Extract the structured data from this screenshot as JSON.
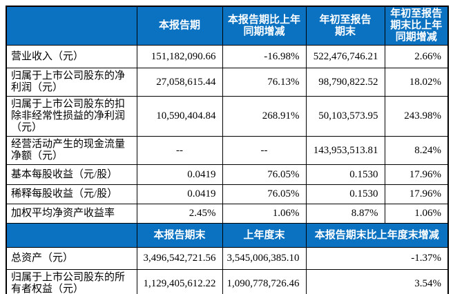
{
  "document": {
    "type": "financial-summary-table",
    "colors": {
      "header_bg": "#0b72c2",
      "header_text": "#ffffff",
      "border": "#000000",
      "body_text": "#000000",
      "page_bg": "#ffffff"
    },
    "sections": [
      {
        "name": "reporting-period",
        "header": [
          {
            "text": "",
            "span": 1
          },
          {
            "text": "本报告期",
            "span": 1
          },
          {
            "text": "本报告期比上年\n同期增减",
            "span": 1
          },
          {
            "text": "年初至报告\n期末",
            "span": 1
          },
          {
            "text": "年初至报告\n期末比上年\n同期增减",
            "span": 1
          }
        ],
        "rows": [
          {
            "label": "营业收入（元）",
            "values": [
              {
                "text": "151,182,090.66",
                "span": 1
              },
              {
                "text": "-16.98%",
                "span": 1
              },
              {
                "text": "522,476,746.21",
                "span": 1
              },
              {
                "text": "2.66%",
                "span": 1
              }
            ]
          },
          {
            "label": "归属于上市公司股东的净\n利润（元）",
            "values": [
              {
                "text": "27,058,615.44",
                "span": 1
              },
              {
                "text": "76.13%",
                "span": 1
              },
              {
                "text": "98,790,822.52",
                "span": 1
              },
              {
                "text": "18.02%",
                "span": 1
              }
            ]
          },
          {
            "label": "归属于上市公司股东的扣\n除非经常性损益的净利润\n（元）",
            "values": [
              {
                "text": "10,590,404.84",
                "span": 1
              },
              {
                "text": "268.91%",
                "span": 1
              },
              {
                "text": "50,103,573.95",
                "span": 1
              },
              {
                "text": "243.98%",
                "span": 1
              }
            ]
          },
          {
            "label": "经营活动产生的现金流量\n净额（元）",
            "values": [
              {
                "text": "--",
                "span": 1
              },
              {
                "text": "--",
                "span": 1
              },
              {
                "text": "143,953,513.81",
                "span": 1
              },
              {
                "text": "8.24%",
                "span": 1
              }
            ]
          },
          {
            "label": "基本每股收益（元/股）",
            "values": [
              {
                "text": "0.0419",
                "span": 1
              },
              {
                "text": "76.05%",
                "span": 1
              },
              {
                "text": "0.1530",
                "span": 1
              },
              {
                "text": "17.96%",
                "span": 1
              }
            ]
          },
          {
            "label": "稀释每股收益（元/股）",
            "values": [
              {
                "text": "0.0419",
                "span": 1
              },
              {
                "text": "76.05%",
                "span": 1
              },
              {
                "text": "0.1530",
                "span": 1
              },
              {
                "text": "17.96%",
                "span": 1
              }
            ]
          },
          {
            "label": "加权平均净资产收益率",
            "values": [
              {
                "text": "2.45%",
                "span": 1
              },
              {
                "text": "1.06%",
                "span": 1
              },
              {
                "text": "8.87%",
                "span": 1
              },
              {
                "text": "1.06%",
                "span": 1
              }
            ]
          }
        ]
      },
      {
        "name": "period-end",
        "header": [
          {
            "text": "",
            "span": 1
          },
          {
            "text": "本报告期末",
            "span": 1
          },
          {
            "text": "上年度末",
            "span": 1
          },
          {
            "text": "本报告期末比上年度末增减",
            "span": 2
          }
        ],
        "rows": [
          {
            "label": "总资产（元）",
            "values": [
              {
                "text": "3,496,542,721.56",
                "span": 1
              },
              {
                "text": "3,545,006,385.10",
                "span": 1
              },
              {
                "text": "-1.37%",
                "span": 2
              }
            ]
          },
          {
            "label": "归属于上市公司股东的所\n有者权益（元）",
            "values": [
              {
                "text": "1,129,405,612.22",
                "span": 1
              },
              {
                "text": "1,090,778,726.46",
                "span": 1
              },
              {
                "text": "3.54%",
                "span": 2
              }
            ]
          }
        ]
      }
    ]
  }
}
